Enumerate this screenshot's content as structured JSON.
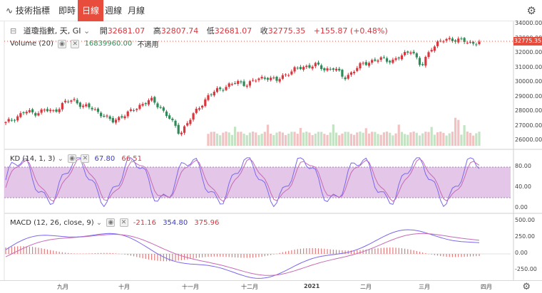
{
  "toolbar": {
    "indicators_label": "技術指標",
    "tabs": [
      "即時",
      "日線",
      "週線",
      "月線"
    ],
    "active_tab": "日線"
  },
  "main": {
    "symbol_label": "道瓊指數, 天, GI",
    "open_label": "開",
    "open_value": "32681.07",
    "high_label": "高",
    "high_value": "32807.74",
    "low_label": "低",
    "low_value": "32681.07",
    "close_label": "收",
    "close_value": "32775.35",
    "change": "+155.87 (+0.48%)",
    "volume_label": "Volume (20)",
    "volume_value": "16839960.00",
    "volume_ma_label": "不適用",
    "last_price": "32775.35",
    "y_ticks": [
      "34000.00",
      "33000.00",
      "32000.00",
      "31000.00",
      "30000.00",
      "29000.00",
      "28000.00",
      "27000.00",
      "26000.00"
    ]
  },
  "kd": {
    "label": "KD (14, 1, 3)",
    "k_value": "67.80",
    "d_value": "66.51",
    "y_ticks": [
      "80.00",
      "40.00",
      "0.00"
    ]
  },
  "macd": {
    "label": "MACD (12, 26, close, 9)",
    "hist_value": "-21.16",
    "macd_value": "354.80",
    "signal_value": "375.96",
    "y_ticks": [
      "500.00",
      "250.00",
      "0.00",
      "-250.00"
    ]
  },
  "x_axis": {
    "labels": [
      "九月",
      "十月",
      "十一月",
      "十二月",
      "2021",
      "二月",
      "三月",
      "四月"
    ]
  },
  "colors": {
    "up": "#d9363e",
    "down": "#2e8b57",
    "vol_up": "#f2c2c2",
    "vol_down": "#c4e3c4",
    "kd_band": "#d9b3e0",
    "k_line": "#7b68ee",
    "d_line": "#c76ab6",
    "accent": "#e74c3c"
  },
  "chart_data": {
    "type": "candlestick",
    "description_series": [
      {
        "name": "Close",
        "values": [
          27200,
          27600,
          28000,
          27900,
          28100,
          28000,
          28600,
          28800,
          28400,
          28200,
          27800,
          27300,
          27700,
          28000,
          28500,
          28800,
          28300,
          27500,
          26500,
          27400,
          28300,
          29100,
          29500,
          29800,
          30000,
          29900,
          30200,
          30400,
          30100,
          30600,
          30900,
          31100,
          31200,
          30900,
          31000,
          30300,
          30800,
          31300,
          31500,
          31600,
          31500,
          31800,
          32300,
          31000,
          32400,
          32800,
          33000,
          32900,
          32700,
          32775
        ]
      }
    ],
    "ylim": [
      25500,
      34200
    ]
  }
}
